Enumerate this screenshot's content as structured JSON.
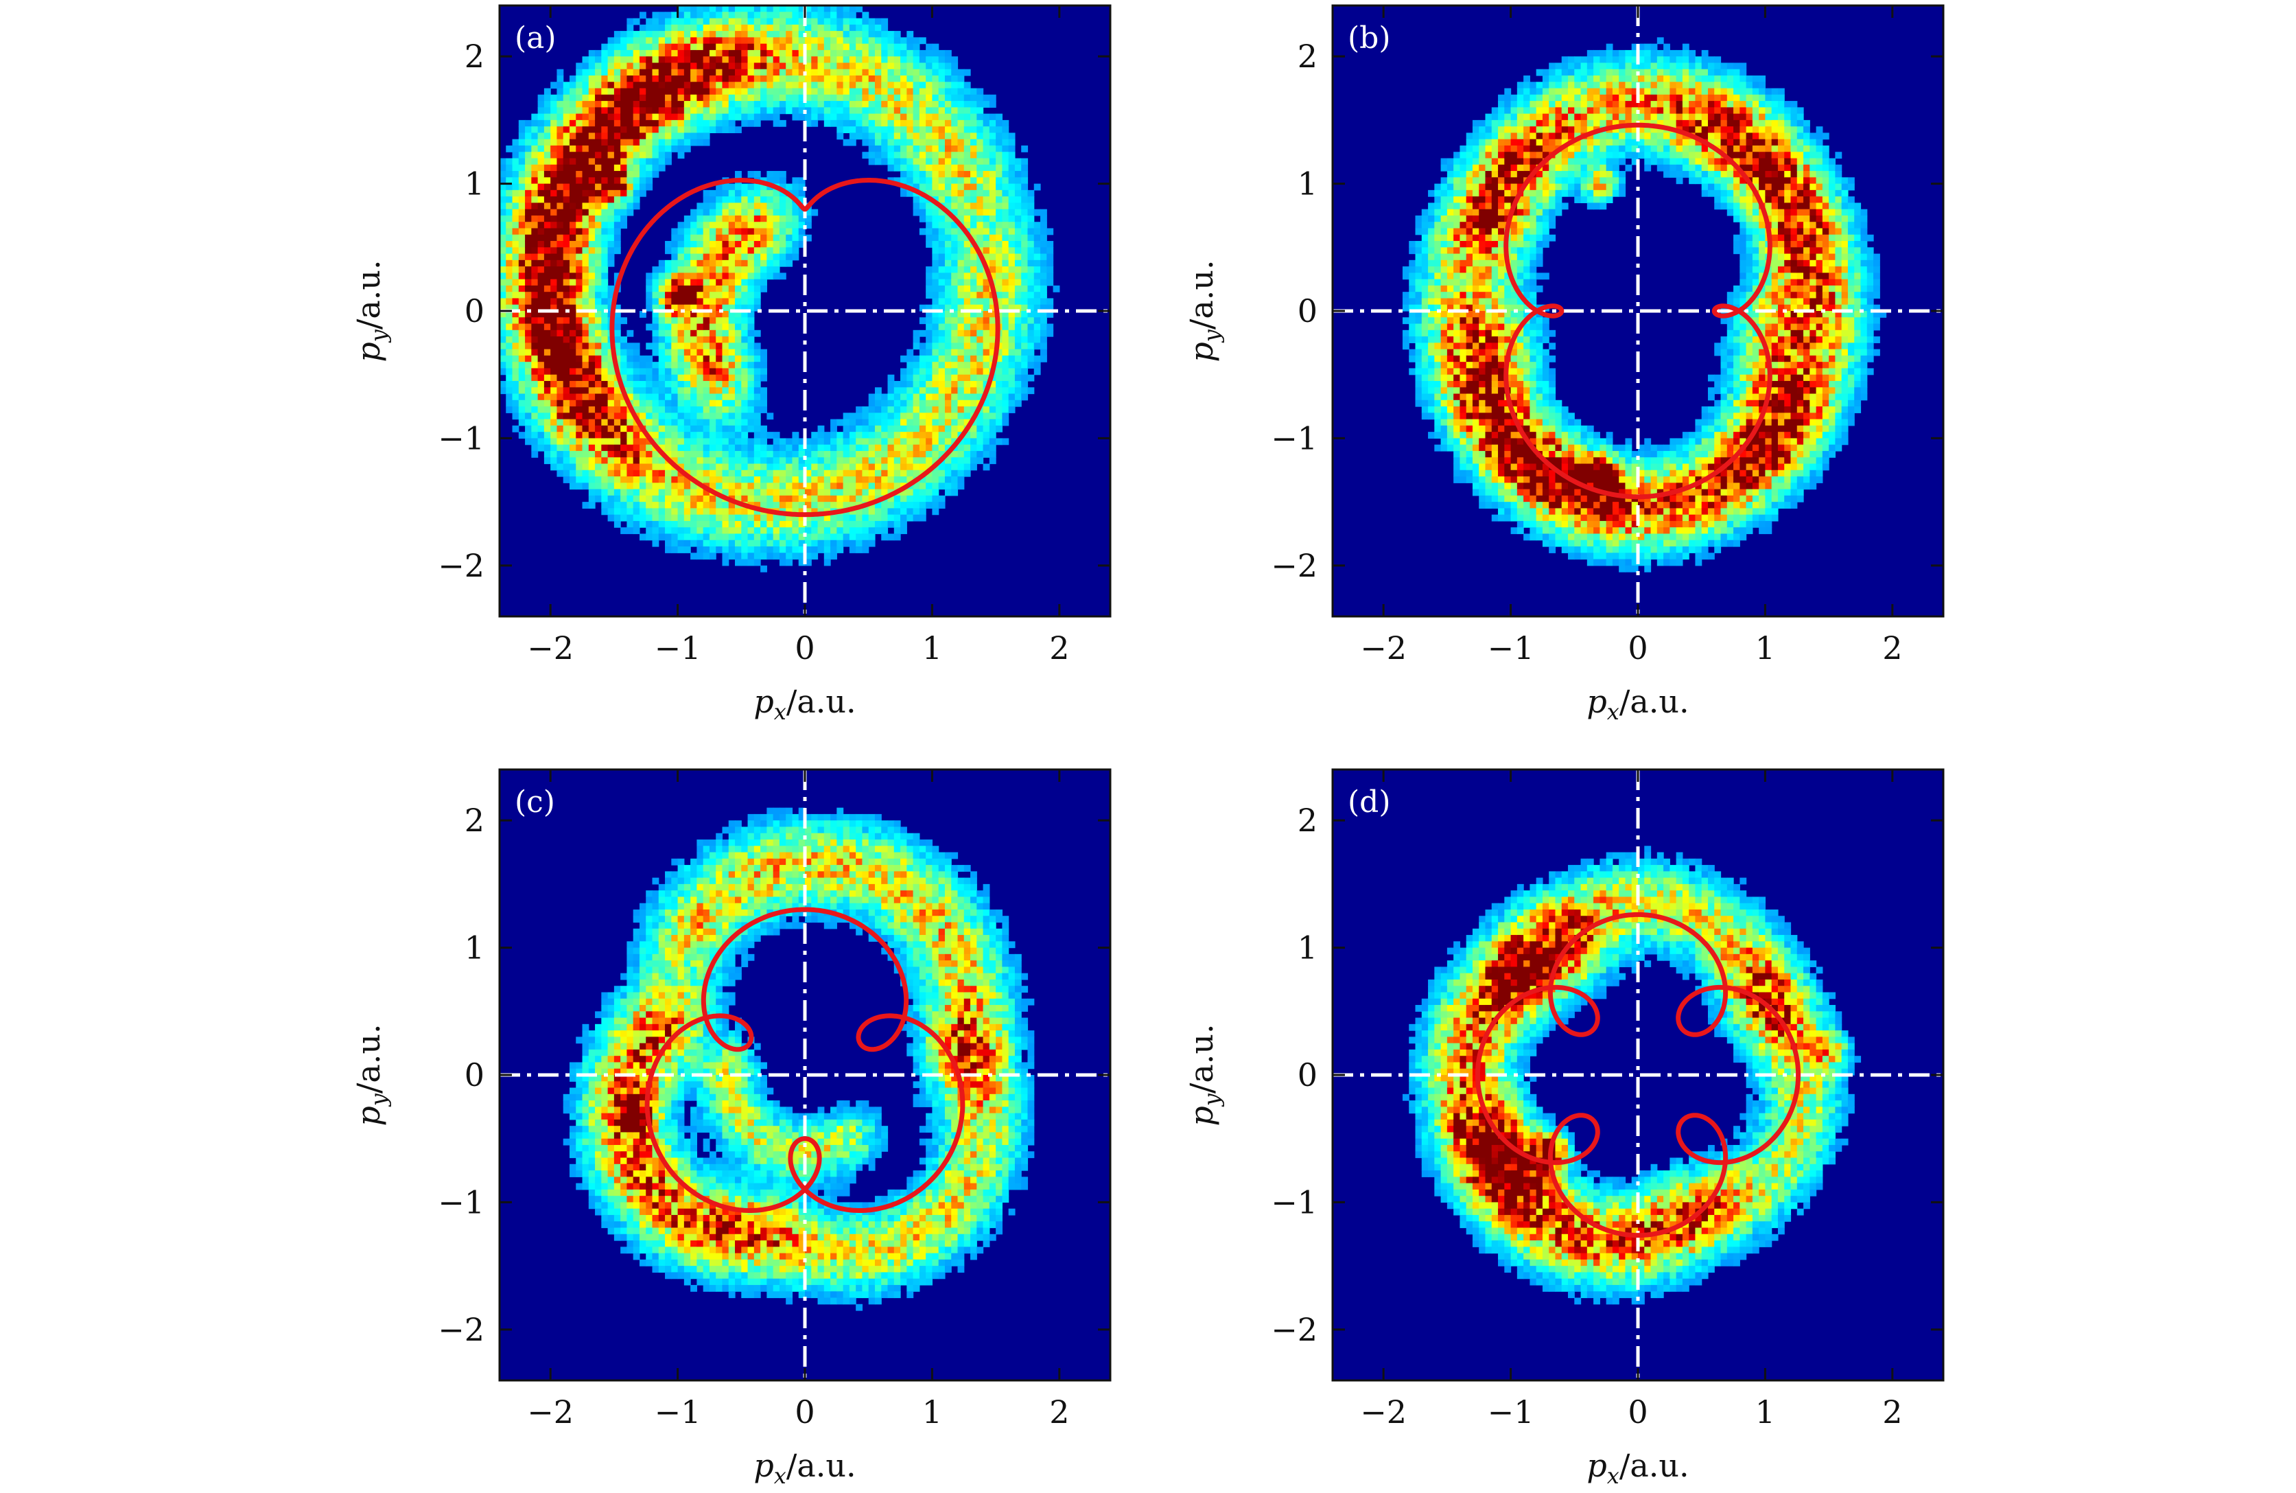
{
  "chart_data": [
    {
      "type": "heatmap",
      "panel_label": "(a)",
      "xlabel": {
        "symbol": "p",
        "sub": "x",
        "unit": "/a.u."
      },
      "ylabel": {
        "symbol": "p",
        "sub": "y",
        "unit": "/a.u."
      },
      "xlim": [
        -2.4,
        2.4
      ],
      "ylim": [
        -2.4,
        2.4
      ],
      "xticks": [
        -2,
        -1,
        0,
        1,
        2
      ],
      "yticks": [
        -2,
        -1,
        0,
        1,
        2
      ],
      "xtick_labels": [
        "−2",
        "−1",
        "0",
        "1",
        "2"
      ],
      "ytick_labels": [
        "−2",
        "−1",
        "0",
        "1",
        "2"
      ],
      "reference_lines": {
        "x": 0,
        "y": 0,
        "style": "dash-dot",
        "color": "#ffffff"
      },
      "colormap": "jet",
      "background_color": "#00008f",
      "density_ridges": [
        {
          "center": [
            -0.3,
            0.25
          ],
          "radius": 1.75,
          "arc_deg": [
            30,
            360
          ],
          "width": 0.25,
          "peak": 0.5
        },
        {
          "center": [
            -0.3,
            0.25
          ],
          "radius": 1.7,
          "arc_deg": [
            120,
            205
          ],
          "width": 0.2,
          "peak": 0.75
        },
        {
          "center": [
            0.1,
            -0.1
          ],
          "radius": 0.9,
          "arc_deg": [
            130,
            200
          ],
          "width": 0.2,
          "peak": 0.7
        }
      ],
      "hot_spots": [
        {
          "x": -1.0,
          "y": 0.12,
          "peak": 1.0
        },
        {
          "x": -1.5,
          "y": 1.0,
          "peak": 0.8
        }
      ],
      "curve": {
        "color": "#e8171a",
        "n_lobes": 1,
        "R": 1.2,
        "r": 0.55,
        "rotation_deg": 90,
        "offset": [
          0.0,
          0.15
        ]
      }
    },
    {
      "type": "heatmap",
      "panel_label": "(b)",
      "xlabel": {
        "symbol": "p",
        "sub": "x",
        "unit": "/a.u."
      },
      "ylabel": {
        "symbol": "p",
        "sub": "y",
        "unit": "/a.u."
      },
      "xlim": [
        -2.4,
        2.4
      ],
      "ylim": [
        -2.4,
        2.4
      ],
      "xticks": [
        -2,
        -1,
        0,
        1,
        2
      ],
      "yticks": [
        -2,
        -1,
        0,
        1,
        2
      ],
      "xtick_labels": [
        "−2",
        "−1",
        "0",
        "1",
        "2"
      ],
      "ytick_labels": [
        "−2",
        "−1",
        "0",
        "1",
        "2"
      ],
      "reference_lines": {
        "x": 0,
        "y": 0,
        "style": "dash-dot",
        "color": "#ffffff"
      },
      "colormap": "jet",
      "background_color": "#00008f",
      "density_ridges": [
        {
          "center": [
            0.05,
            0.45
          ],
          "radius": 1.2,
          "arc_deg": [
            -20,
            160
          ],
          "width": 0.22,
          "peak": 0.55
        },
        {
          "center": [
            0.0,
            -0.4
          ],
          "radius": 1.15,
          "arc_deg": [
            180,
            340
          ],
          "width": 0.22,
          "peak": 0.7
        },
        {
          "center": [
            0.0,
            0.0
          ],
          "radius": 1.5,
          "arc_deg": [
            -40,
            60
          ],
          "width": 0.2,
          "peak": 0.45
        },
        {
          "center": [
            0.0,
            0.0
          ],
          "radius": 1.45,
          "arc_deg": [
            140,
            240
          ],
          "width": 0.2,
          "peak": 0.45
        }
      ],
      "hot_spots": [
        {
          "x": -0.3,
          "y": -1.3,
          "peak": 1.0
        },
        {
          "x": -0.3,
          "y": 1.0,
          "peak": 0.55
        }
      ],
      "curve": {
        "color": "#e8171a",
        "n_lobes": 2,
        "R": 1.03,
        "r": 0.43,
        "rotation_deg": 0,
        "offset": [
          0.0,
          0.0
        ]
      }
    },
    {
      "type": "heatmap",
      "panel_label": "(c)",
      "xlabel": {
        "symbol": "p",
        "sub": "x",
        "unit": "/a.u."
      },
      "ylabel": {
        "symbol": "p",
        "sub": "y",
        "unit": "/a.u."
      },
      "xlim": [
        -2.4,
        2.4
      ],
      "ylim": [
        -2.4,
        2.4
      ],
      "xticks": [
        -2,
        -1,
        0,
        1,
        2
      ],
      "yticks": [
        -2,
        -1,
        0,
        1,
        2
      ],
      "xtick_labels": [
        "−2",
        "−1",
        "0",
        "1",
        "2"
      ],
      "ytick_labels": [
        "−2",
        "−1",
        "0",
        "1",
        "2"
      ],
      "reference_lines": {
        "x": 0,
        "y": 0,
        "style": "dash-dot",
        "color": "#ffffff"
      },
      "colormap": "jet",
      "background_color": "#00008f",
      "density_ridges": [
        {
          "center": [
            0.1,
            0.45
          ],
          "radius": 1.2,
          "arc_deg": [
            0,
            140
          ],
          "width": 0.22,
          "peak": 0.55
        },
        {
          "center": [
            -0.45,
            -0.3
          ],
          "radius": 0.95,
          "arc_deg": [
            140,
            260
          ],
          "width": 0.22,
          "peak": 0.75
        },
        {
          "center": [
            0.35,
            -0.35
          ],
          "radius": 1.05,
          "arc_deg": [
            250,
            380
          ],
          "width": 0.2,
          "peak": 0.5
        },
        {
          "center": [
            0.0,
            0.0
          ],
          "radius": 0.6,
          "arc_deg": [
            180,
            300
          ],
          "width": 0.15,
          "peak": 0.45
        }
      ],
      "hot_spots": [
        {
          "x": -1.35,
          "y": -0.3,
          "peak": 1.0
        }
      ],
      "curve": {
        "color": "#e8171a",
        "n_lobes": 3,
        "R": 0.9,
        "r": 0.4,
        "rotation_deg": -90,
        "offset": [
          0.0,
          0.0
        ]
      }
    },
    {
      "type": "heatmap",
      "panel_label": "(d)",
      "xlabel": {
        "symbol": "p",
        "sub": "x",
        "unit": "/a.u."
      },
      "ylabel": {
        "symbol": "p",
        "sub": "y",
        "unit": "/a.u."
      },
      "xlim": [
        -2.4,
        2.4
      ],
      "ylim": [
        -2.4,
        2.4
      ],
      "xticks": [
        -2,
        -1,
        0,
        1,
        2
      ],
      "yticks": [
        -2,
        -1,
        0,
        1,
        2
      ],
      "xtick_labels": [
        "−2",
        "−1",
        "0",
        "1",
        "2"
      ],
      "ytick_labels": [
        "−2",
        "−1",
        "0",
        "1",
        "2"
      ],
      "reference_lines": {
        "x": 0,
        "y": 0,
        "style": "dash-dot",
        "color": "#ffffff"
      },
      "colormap": "jet",
      "background_color": "#00008f",
      "density_ridges": [
        {
          "center": [
            0.0,
            0.3
          ],
          "radius": 1.05,
          "arc_deg": [
            20,
            150
          ],
          "width": 0.2,
          "peak": 0.5
        },
        {
          "center": [
            -0.35,
            0.0
          ],
          "radius": 1.0,
          "arc_deg": [
            110,
            220
          ],
          "width": 0.22,
          "peak": 0.65
        },
        {
          "center": [
            -0.2,
            -0.35
          ],
          "radius": 0.95,
          "arc_deg": [
            200,
            300
          ],
          "width": 0.22,
          "peak": 0.75
        },
        {
          "center": [
            0.3,
            -0.1
          ],
          "radius": 1.0,
          "arc_deg": [
            -60,
            40
          ],
          "width": 0.2,
          "peak": 0.45
        }
      ],
      "hot_spots": [
        {
          "x": -0.7,
          "y": -0.6,
          "peak": 1.0
        },
        {
          "x": 1.5,
          "y": 0.2,
          "peak": 0.45
        }
      ],
      "curve": {
        "color": "#e8171a",
        "n_lobes": 4,
        "R": 0.88,
        "r": 0.38,
        "rotation_deg": 45,
        "offset": [
          0.0,
          0.0
        ]
      }
    }
  ]
}
